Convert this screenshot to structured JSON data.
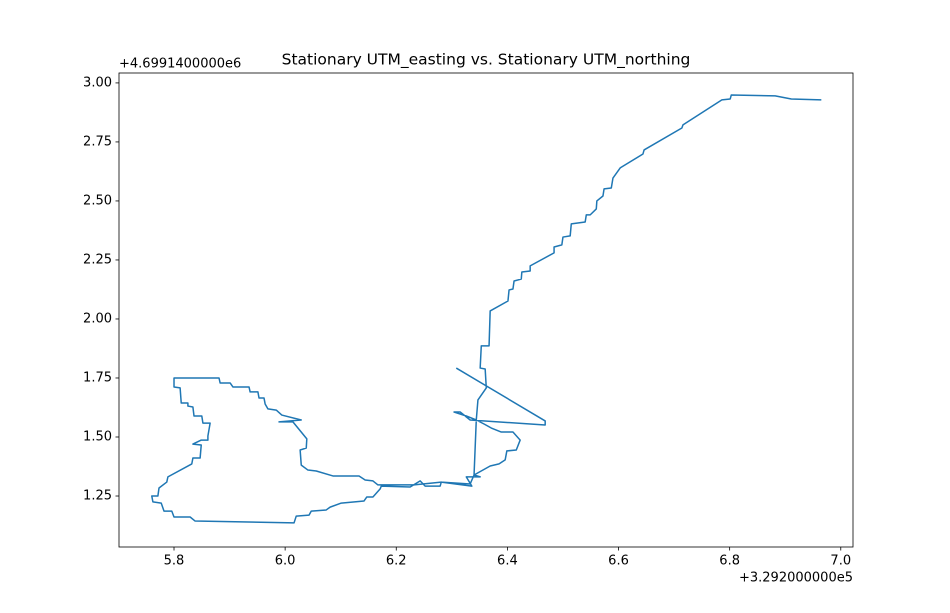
{
  "chart_data": {
    "type": "line",
    "title": "Stationary UTM_easting vs. Stationary UTM_northing",
    "x_offset_label": "+3.292000000e5",
    "y_offset_label": "+4.6991400000e6",
    "color": "#1f77b4",
    "xlim": [
      5.701,
      7.022
    ],
    "ylim": [
      1.034,
      3.042
    ],
    "xticks": [
      5.8,
      {
        "value": 6,
        "label": "6.0"
      },
      6.2,
      6.4,
      6.6,
      6.8,
      {
        "value": 7,
        "label": "7.0"
      }
    ],
    "yticks": [
      1.25,
      {
        "value": 1.5,
        "label": "1.50"
      },
      1.75,
      {
        "value": 2,
        "label": "2.00"
      },
      2.25,
      {
        "value": 2.5,
        "label": "2.50"
      },
      2.75,
      {
        "value": 3,
        "label": "3.00"
      }
    ],
    "grid": false,
    "x": [
      6.965,
      6.911,
      6.882,
      6.803,
      6.801,
      6.786,
      6.716,
      6.714,
      6.646,
      6.644,
      6.603,
      6.59,
      6.587,
      6.574,
      6.572,
      6.561,
      6.56,
      6.549,
      6.542,
      6.54,
      6.515,
      6.513,
      6.5,
      6.498,
      6.484,
      6.484,
      6.441,
      6.441,
      6.426,
      6.425,
      6.412,
      6.41,
      6.403,
      6.401,
      6.369,
      6.367,
      6.353,
      6.351,
      6.36,
      6.362,
      6.347,
      6.344,
      6.34,
      6.351,
      6.326,
      6.336,
      6.281,
      6.279,
      6.252,
      6.243,
      6.225,
      6.173,
      6.171,
      6.158,
      6.147,
      6.142,
      6.101,
      6.081,
      6.074,
      6.047,
      6.043,
      6.02,
      6.016,
      5.838,
      5.829,
      5.8,
      5.796,
      5.782,
      5.777,
      5.762,
      5.76,
      5.771,
      5.773,
      5.787,
      5.789,
      5.832,
      5.834,
      5.847,
      5.849,
      5.834,
      5.849,
      5.861,
      5.861,
      5.865,
      5.852,
      5.85,
      5.836,
      5.834,
      5.825,
      5.825,
      5.813,
      5.811,
      5.8,
      5.8,
      5.881,
      5.883,
      5.901,
      5.906,
      5.935,
      5.937,
      5.951,
      5.953,
      5.962,
      5.964,
      5.969,
      5.984,
      5.994,
      6.029,
      5.989,
      6.014,
      6.039,
      6.038,
      6.027,
      6.029,
      6.041,
      6.056,
      6.086,
      6.133,
      6.144,
      6.158,
      6.167,
      6.232,
      6.281,
      6.333,
      6.34,
      6.369,
      6.385,
      6.396,
      6.399,
      6.416,
      6.423,
      6.41,
      6.389,
      6.371,
      6.358,
      6.344,
      6.326,
      6.304,
      6.315,
      6.333,
      6.468,
      6.468,
      6.308
    ],
    "values": [
      2.928,
      2.932,
      2.945,
      2.949,
      2.932,
      2.928,
      2.822,
      2.809,
      2.716,
      2.699,
      2.64,
      2.597,
      2.555,
      2.551,
      2.521,
      2.5,
      2.466,
      2.441,
      2.441,
      2.411,
      2.403,
      2.352,
      2.347,
      2.314,
      2.305,
      2.28,
      2.225,
      2.203,
      2.199,
      2.169,
      2.161,
      2.127,
      2.123,
      2.076,
      2.034,
      1.886,
      1.886,
      1.792,
      1.788,
      1.708,
      1.657,
      1.572,
      1.339,
      1.331,
      1.331,
      1.292,
      1.309,
      1.292,
      1.292,
      1.314,
      1.288,
      1.292,
      1.28,
      1.246,
      1.246,
      1.229,
      1.22,
      1.203,
      1.191,
      1.186,
      1.169,
      1.165,
      1.136,
      1.144,
      1.161,
      1.161,
      1.186,
      1.186,
      1.22,
      1.225,
      1.25,
      1.25,
      1.284,
      1.309,
      1.331,
      1.386,
      1.411,
      1.411,
      1.466,
      1.47,
      1.487,
      1.487,
      1.504,
      1.559,
      1.559,
      1.589,
      1.589,
      1.627,
      1.631,
      1.644,
      1.644,
      1.708,
      1.712,
      1.75,
      1.75,
      1.729,
      1.729,
      1.712,
      1.712,
      1.691,
      1.691,
      1.665,
      1.665,
      1.64,
      1.619,
      1.614,
      1.593,
      1.572,
      1.564,
      1.564,
      1.492,
      1.453,
      1.445,
      1.381,
      1.36,
      1.356,
      1.335,
      1.335,
      1.318,
      1.314,
      1.297,
      1.297,
      1.309,
      1.301,
      1.339,
      1.377,
      1.386,
      1.403,
      1.441,
      1.445,
      1.487,
      1.521,
      1.521,
      1.538,
      1.555,
      1.572,
      1.589,
      1.606,
      1.606,
      1.572,
      1.551,
      1.568,
      1.792
    ]
  }
}
